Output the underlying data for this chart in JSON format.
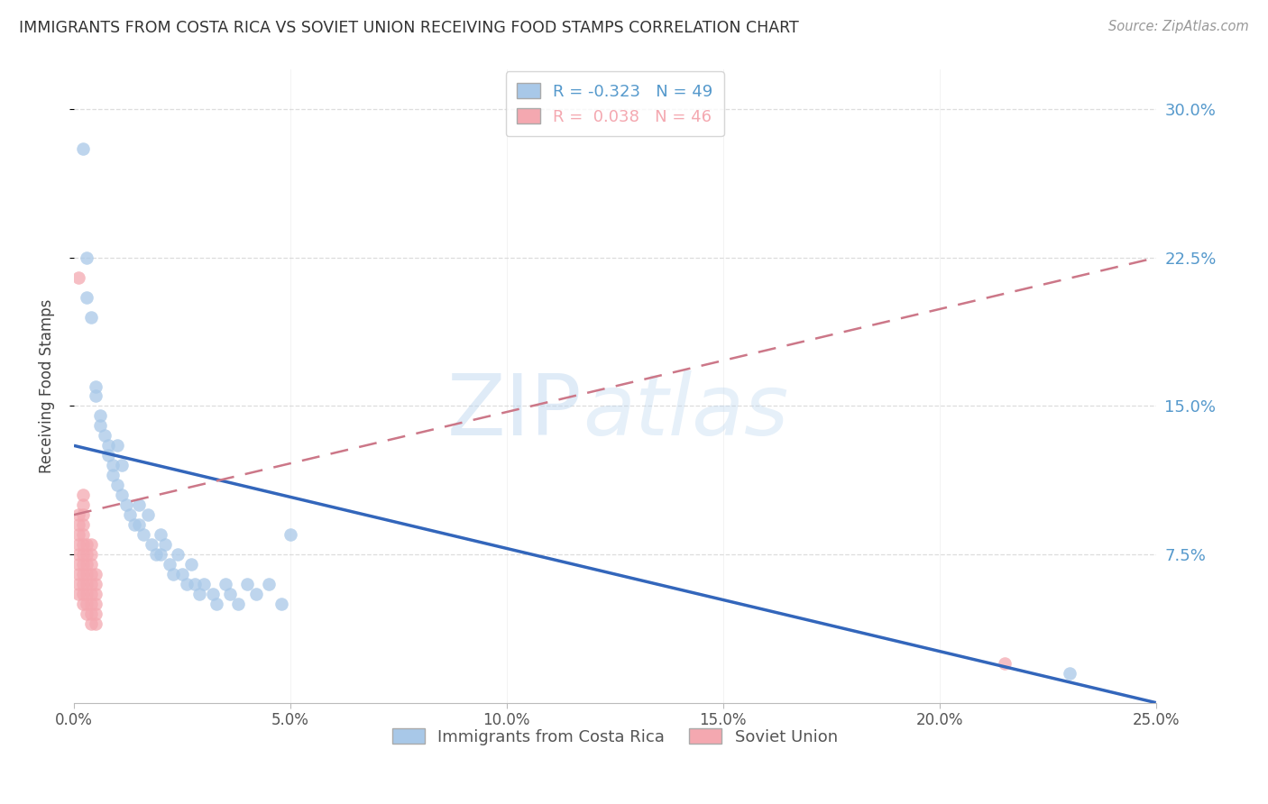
{
  "title": "IMMIGRANTS FROM COSTA RICA VS SOVIET UNION RECEIVING FOOD STAMPS CORRELATION CHART",
  "source": "Source: ZipAtlas.com",
  "ylabel": "Receiving Food Stamps",
  "xlim": [
    0.0,
    0.25
  ],
  "ylim": [
    0.0,
    0.32
  ],
  "ytick_positions": [
    0.075,
    0.15,
    0.225,
    0.3
  ],
  "ytick_labels": [
    "7.5%",
    "15.0%",
    "22.5%",
    "30.0%"
  ],
  "xtick_positions": [
    0.0,
    0.05,
    0.1,
    0.15,
    0.2,
    0.25
  ],
  "xtick_labels": [
    "0.0%",
    "5.0%",
    "10.0%",
    "15.0%",
    "20.0%",
    "25.0%"
  ],
  "series1_label": "Immigrants from Costa Rica",
  "series1_R": "-0.323",
  "series1_N": "49",
  "series1_color": "#a8c8e8",
  "series1_line_color": "#3366bb",
  "series2_label": "Soviet Union",
  "series2_R": "0.038",
  "series2_N": "46",
  "series2_color": "#f4a8b0",
  "series2_line_color": "#cc7788",
  "watermark_zip": "ZIP",
  "watermark_atlas": "atlas",
  "background_color": "#ffffff",
  "grid_color": "#dddddd",
  "axis_label_color": "#5599cc",
  "title_color": "#333333",
  "costa_rica_x": [
    0.002,
    0.003,
    0.003,
    0.004,
    0.005,
    0.005,
    0.006,
    0.006,
    0.007,
    0.008,
    0.008,
    0.009,
    0.009,
    0.01,
    0.01,
    0.011,
    0.011,
    0.012,
    0.013,
    0.014,
    0.015,
    0.015,
    0.016,
    0.017,
    0.018,
    0.019,
    0.02,
    0.02,
    0.021,
    0.022,
    0.023,
    0.024,
    0.025,
    0.026,
    0.027,
    0.028,
    0.029,
    0.03,
    0.032,
    0.033,
    0.035,
    0.036,
    0.038,
    0.04,
    0.042,
    0.045,
    0.048,
    0.05,
    0.23
  ],
  "costa_rica_y": [
    0.28,
    0.225,
    0.205,
    0.195,
    0.16,
    0.155,
    0.145,
    0.14,
    0.135,
    0.13,
    0.125,
    0.12,
    0.115,
    0.13,
    0.11,
    0.12,
    0.105,
    0.1,
    0.095,
    0.09,
    0.1,
    0.09,
    0.085,
    0.095,
    0.08,
    0.075,
    0.085,
    0.075,
    0.08,
    0.07,
    0.065,
    0.075,
    0.065,
    0.06,
    0.07,
    0.06,
    0.055,
    0.06,
    0.055,
    0.05,
    0.06,
    0.055,
    0.05,
    0.06,
    0.055,
    0.06,
    0.05,
    0.085,
    0.015
  ],
  "soviet_x": [
    0.001,
    0.001,
    0.001,
    0.001,
    0.001,
    0.001,
    0.001,
    0.001,
    0.001,
    0.001,
    0.002,
    0.002,
    0.002,
    0.002,
    0.002,
    0.002,
    0.002,
    0.002,
    0.002,
    0.002,
    0.002,
    0.002,
    0.003,
    0.003,
    0.003,
    0.003,
    0.003,
    0.003,
    0.003,
    0.003,
    0.004,
    0.004,
    0.004,
    0.004,
    0.004,
    0.004,
    0.004,
    0.004,
    0.004,
    0.005,
    0.005,
    0.005,
    0.005,
    0.005,
    0.005,
    0.215
  ],
  "soviet_y": [
    0.055,
    0.06,
    0.065,
    0.07,
    0.075,
    0.08,
    0.085,
    0.09,
    0.095,
    0.215,
    0.05,
    0.055,
    0.06,
    0.065,
    0.07,
    0.075,
    0.08,
    0.085,
    0.09,
    0.095,
    0.1,
    0.105,
    0.045,
    0.05,
    0.055,
    0.06,
    0.065,
    0.07,
    0.075,
    0.08,
    0.04,
    0.045,
    0.05,
    0.055,
    0.06,
    0.065,
    0.07,
    0.075,
    0.08,
    0.04,
    0.045,
    0.05,
    0.055,
    0.06,
    0.065,
    0.02
  ],
  "blue_line_x0": 0.0,
  "blue_line_y0": 0.13,
  "blue_line_x1": 0.25,
  "blue_line_y1": 0.0,
  "pink_line_x0": 0.0,
  "pink_line_y0": 0.095,
  "pink_line_x1": 0.25,
  "pink_line_y1": 0.225
}
